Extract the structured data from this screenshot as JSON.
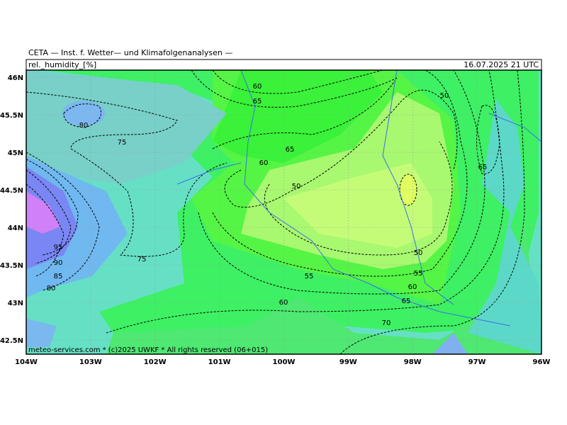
{
  "header": {
    "title": "CETA — Inst. f. Wetter— und Klimafolgenanalysen —",
    "variable": "rel._humidity_[%]",
    "datetime": "16.07.2025 21 UTC"
  },
  "axes": {
    "lon": [
      "104W",
      "103W",
      "102W",
      "101W",
      "100W",
      "99W",
      "98W",
      "97W",
      "96W"
    ],
    "lat": [
      "46N",
      "45.5N",
      "45N",
      "44.5N",
      "44N",
      "43.5N",
      "43N",
      "42.5N"
    ]
  },
  "contour_labels": [
    "60",
    "65",
    "50",
    "80",
    "75",
    "65",
    "60",
    "65",
    "50",
    "95",
    "90",
    "85",
    "80",
    "75",
    "55",
    "50",
    "55",
    "60",
    "65",
    "60",
    "70"
  ],
  "footer": "meteo-services.com * (c)2025 UWKF * All rights reserved (06+015)"
}
